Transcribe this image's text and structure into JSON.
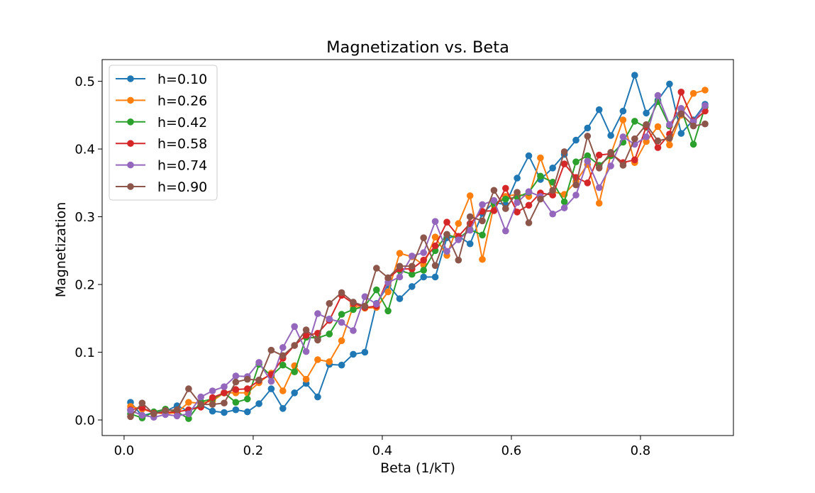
{
  "chart_data": {
    "type": "line",
    "title": "Magnetization vs. Beta",
    "xlabel": "Beta (1/kT)",
    "ylabel": "Magnetization",
    "xlim": [
      -0.034,
      0.944
    ],
    "ylim": [
      -0.023,
      0.532
    ],
    "xticks": [
      0.0,
      0.2,
      0.4,
      0.6,
      0.8
    ],
    "xtick_labels": [
      "0.0",
      "0.2",
      "0.4",
      "0.6",
      "0.8"
    ],
    "yticks": [
      0.0,
      0.1,
      0.2,
      0.3,
      0.4,
      0.5
    ],
    "ytick_labels": [
      "0.0",
      "0.1",
      "0.2",
      "0.3",
      "0.4",
      "0.5"
    ],
    "grid": false,
    "legend_position": "upper-left",
    "markers": true,
    "x": [
      0.01,
      0.028,
      0.046,
      0.064,
      0.082,
      0.1,
      0.119,
      0.137,
      0.155,
      0.173,
      0.191,
      0.209,
      0.228,
      0.246,
      0.264,
      0.282,
      0.3,
      0.318,
      0.337,
      0.355,
      0.373,
      0.391,
      0.409,
      0.427,
      0.446,
      0.464,
      0.482,
      0.5,
      0.518,
      0.536,
      0.555,
      0.573,
      0.591,
      0.609,
      0.627,
      0.645,
      0.664,
      0.682,
      0.7,
      0.718,
      0.736,
      0.754,
      0.773,
      0.791,
      0.809,
      0.827,
      0.845,
      0.863,
      0.882,
      0.9
    ],
    "series": [
      {
        "name": "h=0.10",
        "color": "#1f77b4",
        "values": [
          0.026,
          0.006,
          0.011,
          0.013,
          0.021,
          0.013,
          0.022,
          0.013,
          0.011,
          0.015,
          0.012,
          0.024,
          0.046,
          0.017,
          0.04,
          0.054,
          0.034,
          0.082,
          0.081,
          0.097,
          0.1,
          0.172,
          0.199,
          0.179,
          0.197,
          0.211,
          0.211,
          0.269,
          0.271,
          0.26,
          0.305,
          0.321,
          0.318,
          0.357,
          0.39,
          0.355,
          0.372,
          0.392,
          0.413,
          0.431,
          0.458,
          0.42,
          0.456,
          0.509,
          0.453,
          0.472,
          0.496,
          0.423,
          0.443,
          0.466
        ]
      },
      {
        "name": "h=0.26",
        "color": "#ff7f0e",
        "values": [
          0.02,
          0.016,
          0.011,
          0.009,
          0.011,
          0.026,
          0.025,
          0.028,
          0.04,
          0.04,
          0.04,
          0.055,
          0.069,
          0.043,
          0.08,
          0.06,
          0.089,
          0.086,
          0.117,
          0.168,
          0.165,
          0.166,
          0.189,
          0.246,
          0.241,
          0.229,
          0.27,
          0.243,
          0.29,
          0.331,
          0.237,
          0.317,
          0.33,
          0.333,
          0.33,
          0.387,
          0.337,
          0.333,
          0.352,
          0.377,
          0.32,
          0.392,
          0.443,
          0.38,
          0.411,
          0.433,
          0.406,
          0.45,
          0.482,
          0.487
        ]
      },
      {
        "name": "h=0.42",
        "color": "#2ca02c",
        "values": [
          0.009,
          0.003,
          0.012,
          0.016,
          0.012,
          0.002,
          0.027,
          0.031,
          0.04,
          0.026,
          0.031,
          0.082,
          0.065,
          0.081,
          0.071,
          0.122,
          0.121,
          0.127,
          0.156,
          0.163,
          0.168,
          0.192,
          0.161,
          0.221,
          0.215,
          0.221,
          0.25,
          0.274,
          0.268,
          0.281,
          0.273,
          0.32,
          0.326,
          0.329,
          0.336,
          0.36,
          0.351,
          0.322,
          0.381,
          0.39,
          0.376,
          0.39,
          0.41,
          0.441,
          0.432,
          0.47,
          0.434,
          0.459,
          0.407,
          0.462
        ]
      },
      {
        "name": "h=0.58",
        "color": "#d62728",
        "values": [
          0.015,
          0.018,
          0.01,
          0.011,
          0.012,
          0.015,
          0.019,
          0.033,
          0.04,
          0.045,
          0.046,
          0.058,
          0.067,
          0.091,
          0.11,
          0.125,
          0.128,
          0.147,
          0.184,
          0.172,
          0.166,
          0.168,
          0.209,
          0.223,
          0.223,
          0.236,
          0.257,
          0.292,
          0.271,
          0.29,
          0.308,
          0.309,
          0.342,
          0.307,
          0.317,
          0.335,
          0.332,
          0.378,
          0.358,
          0.35,
          0.391,
          0.393,
          0.38,
          0.384,
          0.433,
          0.402,
          0.422,
          0.484,
          0.441,
          0.456
        ]
      },
      {
        "name": "h=0.74",
        "color": "#9467bd",
        "values": [
          0.014,
          0.007,
          0.004,
          0.008,
          0.006,
          0.009,
          0.034,
          0.043,
          0.049,
          0.065,
          0.064,
          0.085,
          0.057,
          0.107,
          0.138,
          0.101,
          0.157,
          0.149,
          0.144,
          0.132,
          0.182,
          0.171,
          0.203,
          0.211,
          0.242,
          0.247,
          0.293,
          0.249,
          0.266,
          0.28,
          0.318,
          0.324,
          0.279,
          0.321,
          0.337,
          0.33,
          0.304,
          0.313,
          0.332,
          0.382,
          0.343,
          0.375,
          0.418,
          0.407,
          0.418,
          0.479,
          0.436,
          0.46,
          0.44,
          0.464
        ]
      },
      {
        "name": "h=0.90",
        "color": "#8c564b",
        "values": [
          0.005,
          0.025,
          0.009,
          0.014,
          0.015,
          0.046,
          0.023,
          0.023,
          0.025,
          0.056,
          0.06,
          0.059,
          0.103,
          0.095,
          0.11,
          0.133,
          0.118,
          0.172,
          0.188,
          0.174,
          0.168,
          0.224,
          0.21,
          0.227,
          0.227,
          0.269,
          0.228,
          0.274,
          0.236,
          0.3,
          0.294,
          0.339,
          0.312,
          0.336,
          0.291,
          0.326,
          0.339,
          0.396,
          0.347,
          0.419,
          0.372,
          0.395,
          0.376,
          0.415,
          0.436,
          0.412,
          0.416,
          0.452,
          0.434,
          0.437
        ]
      }
    ]
  }
}
